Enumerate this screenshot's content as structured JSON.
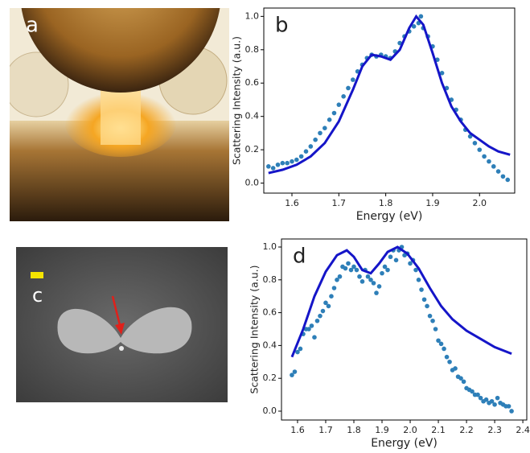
{
  "panels": {
    "a": {
      "label": "a"
    },
    "c": {
      "label": "c"
    }
  },
  "chart_data": [
    {
      "type": "scatter",
      "panel_label": "b",
      "xlabel": "Energy (eV)",
      "ylabel": "Scattering Intensity (a.u.)",
      "xlim": [
        1.54,
        2.075
      ],
      "ylim": [
        -0.06,
        1.05
      ],
      "xticks": [
        1.6,
        1.7,
        1.8,
        1.9,
        {
          "value": 2.0,
          "label": "2.0"
        }
      ],
      "yticks": [
        {
          "value": 0,
          "label": "0.0"
        },
        0.2,
        0.4,
        0.6,
        0.8,
        {
          "value": 1,
          "label": "1.0"
        }
      ],
      "series": [
        {
          "kind": "scatter",
          "color": "#2e7fb8",
          "x": [
            1.55,
            1.56,
            1.57,
            1.58,
            1.59,
            1.6,
            1.61,
            1.62,
            1.63,
            1.64,
            1.65,
            1.66,
            1.67,
            1.68,
            1.69,
            1.7,
            1.71,
            1.72,
            1.73,
            1.74,
            1.75,
            1.76,
            1.77,
            1.78,
            1.79,
            1.8,
            1.81,
            1.82,
            1.83,
            1.84,
            1.85,
            1.86,
            1.87,
            1.875,
            1.88,
            1.89,
            1.9,
            1.91,
            1.92,
            1.93,
            1.94,
            1.95,
            1.96,
            1.97,
            1.98,
            1.99,
            2.0,
            2.01,
            2.02,
            2.03,
            2.04,
            2.05,
            2.06
          ],
          "values": [
            0.1,
            0.09,
            0.11,
            0.12,
            0.12,
            0.13,
            0.14,
            0.16,
            0.19,
            0.22,
            0.26,
            0.3,
            0.33,
            0.38,
            0.42,
            0.47,
            0.52,
            0.57,
            0.62,
            0.67,
            0.71,
            0.75,
            0.77,
            0.76,
            0.77,
            0.76,
            0.75,
            0.79,
            0.84,
            0.88,
            0.91,
            0.94,
            0.96,
            1.0,
            0.93,
            0.88,
            0.82,
            0.74,
            0.66,
            0.57,
            0.5,
            0.44,
            0.38,
            0.32,
            0.28,
            0.24,
            0.2,
            0.16,
            0.13,
            0.1,
            0.07,
            0.04,
            0.02
          ]
        },
        {
          "kind": "line",
          "color": "#1515c8",
          "x": [
            1.55,
            1.58,
            1.61,
            1.64,
            1.67,
            1.7,
            1.73,
            1.75,
            1.77,
            1.79,
            1.81,
            1.83,
            1.85,
            1.865,
            1.88,
            1.9,
            1.92,
            1.94,
            1.96,
            1.98,
            2.0,
            2.02,
            2.04,
            2.065
          ],
          "values": [
            0.06,
            0.08,
            0.11,
            0.16,
            0.24,
            0.37,
            0.56,
            0.7,
            0.77,
            0.76,
            0.74,
            0.8,
            0.93,
            1.0,
            0.95,
            0.78,
            0.6,
            0.46,
            0.37,
            0.3,
            0.26,
            0.22,
            0.19,
            0.17
          ]
        }
      ]
    },
    {
      "type": "scatter",
      "panel_label": "d",
      "xlabel": "Energy (eV)",
      "ylabel": "Scattering Intensity (a.u.)",
      "xlim": [
        1.543,
        2.414
      ],
      "ylim": [
        -0.054,
        1.049
      ],
      "xticks": [
        1.6,
        1.7,
        1.8,
        1.9,
        {
          "value": 2.0,
          "label": "2.0"
        },
        2.1,
        2.2,
        2.3,
        2.4
      ],
      "yticks": [
        {
          "value": 0,
          "label": "0.0"
        },
        0.2,
        0.4,
        0.6,
        0.8,
        {
          "value": 1,
          "label": "1.0"
        }
      ],
      "series": [
        {
          "kind": "scatter",
          "color": "#2e7fb8",
          "x": [
            1.58,
            1.59,
            1.6,
            1.61,
            1.62,
            1.63,
            1.64,
            1.65,
            1.66,
            1.67,
            1.68,
            1.69,
            1.7,
            1.71,
            1.72,
            1.73,
            1.74,
            1.75,
            1.76,
            1.77,
            1.78,
            1.79,
            1.8,
            1.81,
            1.82,
            1.83,
            1.84,
            1.85,
            1.86,
            1.87,
            1.88,
            1.89,
            1.9,
            1.91,
            1.92,
            1.93,
            1.94,
            1.95,
            1.96,
            1.97,
            1.98,
            1.99,
            2.0,
            2.01,
            2.02,
            2.03,
            2.04,
            2.05,
            2.06,
            2.07,
            2.08,
            2.09,
            2.1,
            2.11,
            2.12,
            2.13,
            2.14,
            2.15,
            2.16,
            2.17,
            2.18,
            2.19,
            2.2,
            2.21,
            2.22,
            2.23,
            2.24,
            2.25,
            2.26,
            2.27,
            2.28,
            2.29,
            2.3,
            2.31,
            2.32,
            2.33,
            2.34,
            2.35,
            2.36
          ],
          "values": [
            0.22,
            0.24,
            0.36,
            0.38,
            0.47,
            0.5,
            0.5,
            0.52,
            0.45,
            0.55,
            0.58,
            0.61,
            0.66,
            0.64,
            0.7,
            0.75,
            0.8,
            0.82,
            0.88,
            0.87,
            0.9,
            0.86,
            0.88,
            0.86,
            0.82,
            0.79,
            0.86,
            0.82,
            0.8,
            0.78,
            0.72,
            0.76,
            0.84,
            0.88,
            0.86,
            0.94,
            0.98,
            0.92,
            0.98,
            1.0,
            0.95,
            0.96,
            0.9,
            0.92,
            0.86,
            0.8,
            0.74,
            0.68,
            0.64,
            0.58,
            0.55,
            0.5,
            0.43,
            0.41,
            0.38,
            0.33,
            0.3,
            0.25,
            0.26,
            0.21,
            0.2,
            0.18,
            0.14,
            0.13,
            0.12,
            0.1,
            0.1,
            0.08,
            0.06,
            0.07,
            0.05,
            0.06,
            0.04,
            0.08,
            0.05,
            0.04,
            0.03,
            0.03,
            0.0
          ]
        },
        {
          "kind": "line",
          "color": "#1515c8",
          "x": [
            1.58,
            1.62,
            1.66,
            1.7,
            1.74,
            1.775,
            1.8,
            1.83,
            1.86,
            1.89,
            1.92,
            1.955,
            1.99,
            2.03,
            2.07,
            2.11,
            2.15,
            2.2,
            2.25,
            2.3,
            2.36
          ],
          "values": [
            0.33,
            0.5,
            0.7,
            0.85,
            0.95,
            0.98,
            0.94,
            0.86,
            0.84,
            0.9,
            0.97,
            1.0,
            0.96,
            0.87,
            0.75,
            0.64,
            0.56,
            0.49,
            0.44,
            0.39,
            0.35
          ]
        }
      ]
    }
  ]
}
